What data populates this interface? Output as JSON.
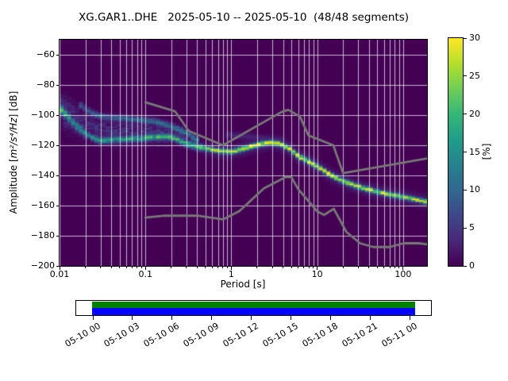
{
  "chart_data": {
    "type": "heatmap",
    "title": "XG.GAR1..DHE   2025-05-10 -- 2025-05-10  (48/48 segments)",
    "xlabel": "Period [s]",
    "ylabel": {
      "prefix": "Amplitude [",
      "math": "m²/s⁴/Hz",
      "suffix": "] [dB]"
    },
    "x_scale": "log",
    "xlim": [
      0.01,
      190
    ],
    "ylim": [
      -200,
      -50
    ],
    "grid": true,
    "x_ticks": {
      "values": [
        0.01,
        0.1,
        1,
        10,
        100
      ],
      "labels": [
        "0.01",
        "0.1",
        "1",
        "10",
        "100"
      ]
    },
    "y_ticks": {
      "values": [
        -60,
        -80,
        -100,
        -120,
        -140,
        -160,
        -180,
        -200
      ],
      "labels": [
        "−60",
        "−80",
        "−100",
        "−120",
        "−140",
        "−160",
        "−180",
        "−200"
      ]
    },
    "colorbar": {
      "label": "[%]",
      "min": 0,
      "max": 30,
      "tick_values": [
        0,
        5,
        10,
        15,
        20,
        25,
        30
      ],
      "tick_labels": [
        "0",
        "5",
        "10",
        "15",
        "20",
        "25",
        "30"
      ],
      "colormap": "viridis"
    },
    "colormap_stops": [
      "#440154",
      "#482878",
      "#3e4989",
      "#31688e",
      "#26828e",
      "#1f9e89",
      "#35b779",
      "#6ece58",
      "#b5de2b",
      "#fde725"
    ],
    "distribution": {
      "comment": "PPSD probability cloud: per period, top edge, mode ridge, bottom edge [dB] and peak probability [%]",
      "period": [
        0.01,
        0.012,
        0.015,
        0.019,
        0.024,
        0.03,
        0.04,
        0.06,
        0.09,
        0.13,
        0.2,
        0.3,
        0.45,
        0.7,
        1.0,
        1.4,
        2.0,
        2.8,
        3.5,
        4.5,
        6.0,
        8.0,
        10.0,
        14.0,
        20.0,
        30.0,
        50.0,
        80.0,
        120.0,
        186.0
      ],
      "upper_db": [
        -86,
        -88,
        -91,
        -95,
        -99,
        -101,
        -102,
        -102.5,
        -103.5,
        -104.5,
        -107.5,
        -112,
        -118.5,
        -121.5,
        -122.3,
        -120.2,
        -117.7,
        -116.2,
        -116.8,
        -119.5,
        -125,
        -129,
        -132,
        -137.3,
        -141.8,
        -145.2,
        -148.5,
        -150.7,
        -152.3,
        -154
      ],
      "mode_db": [
        -95,
        -100,
        -106,
        -111,
        -115,
        -117,
        -116.5,
        -116,
        -115.5,
        -114.5,
        -114.5,
        -119,
        -121.7,
        -123.8,
        -124.5,
        -122.3,
        -119.7,
        -118.2,
        -118.8,
        -121.5,
        -127,
        -131,
        -134,
        -139.5,
        -144,
        -147.5,
        -151,
        -153.3,
        -155.3,
        -157.5
      ],
      "lower_db": [
        -107,
        -111,
        -114,
        -117,
        -119,
        -120,
        -120.5,
        -120.5,
        -120.5,
        -120,
        -119.5,
        -121.5,
        -124,
        -126,
        -126.7,
        -124.5,
        -121.7,
        -120.2,
        -120.8,
        -123.5,
        -129.3,
        -133.3,
        -136.5,
        -142,
        -146.5,
        -150,
        -154,
        -156.5,
        -158.8,
        -161.5
      ],
      "peak_pct": [
        25,
        18,
        15,
        14,
        15,
        16,
        16,
        17,
        18,
        20,
        20,
        20,
        22,
        26,
        28,
        30,
        30,
        30,
        30,
        30,
        30,
        30,
        30,
        29,
        28,
        28,
        27,
        26,
        26,
        24
      ]
    },
    "noise_models": {
      "color": "#787878",
      "nhnm": [
        [
          0.1,
          -91.5
        ],
        [
          0.22,
          -97.4
        ],
        [
          0.32,
          -110.5
        ],
        [
          0.8,
          -120.0
        ],
        [
          3.8,
          -98.1
        ],
        [
          4.6,
          -96.5
        ],
        [
          6.3,
          -101.0
        ],
        [
          7.9,
          -113.5
        ],
        [
          15.4,
          -120.0
        ],
        [
          20.0,
          -138.5
        ],
        [
          354.8,
          -126.0
        ]
      ],
      "nlnm": [
        [
          0.1,
          -168.0
        ],
        [
          0.17,
          -166.7
        ],
        [
          0.4,
          -166.7
        ],
        [
          0.8,
          -169.2
        ],
        [
          1.24,
          -163.7
        ],
        [
          2.4,
          -148.6
        ],
        [
          4.3,
          -141.1
        ],
        [
          5.0,
          -141.1
        ],
        [
          6.0,
          -149.0
        ],
        [
          10.0,
          -163.8
        ],
        [
          12.0,
          -166.2
        ],
        [
          15.6,
          -162.1
        ],
        [
          21.9,
          -177.5
        ],
        [
          31.6,
          -185.0
        ],
        [
          45.0,
          -187.5
        ],
        [
          70.0,
          -187.5
        ],
        [
          101.0,
          -185.0
        ],
        [
          154.0,
          -185.0
        ],
        [
          328.0,
          -187.5
        ]
      ]
    }
  },
  "timeline": {
    "tick_labels": [
      "05-10 00",
      "05-10 03",
      "05-10 06",
      "05-10 09",
      "05-10 12",
      "05-10 15",
      "05-10 18",
      "05-10 21",
      "05-11 00"
    ],
    "coverage_top_color": "#008000",
    "coverage_bottom_color": "#0000ff"
  }
}
